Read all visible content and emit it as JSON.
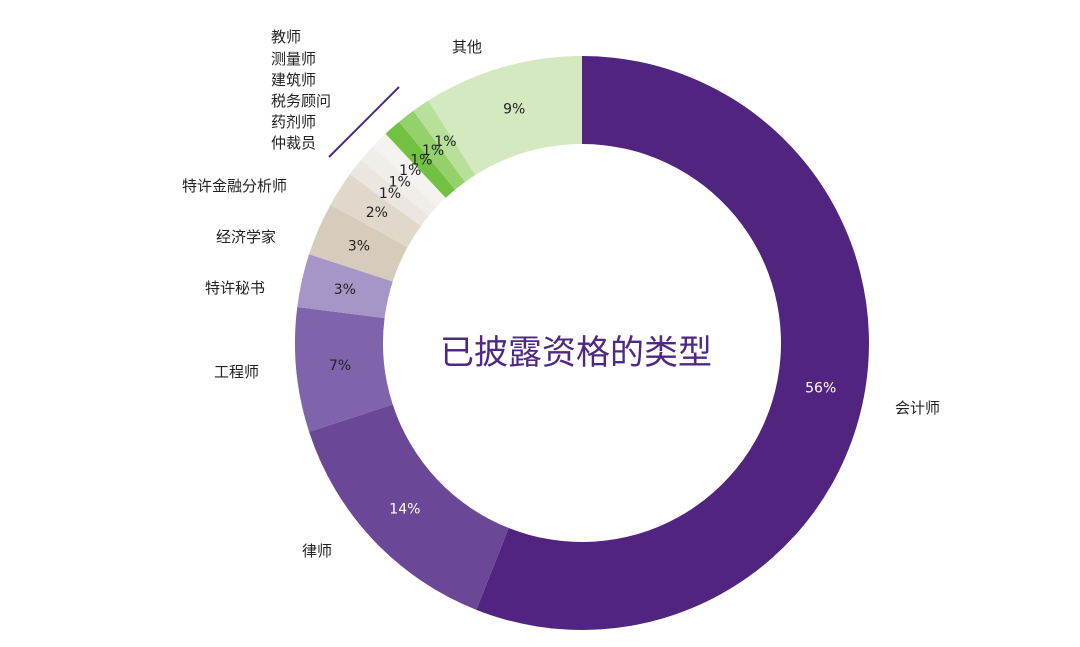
{
  "chart_data": {
    "type": "pie",
    "title": "已披露资格的类型",
    "slices": [
      {
        "label": "会计师",
        "value": 56,
        "value_label": "56%",
        "color": "#51247f",
        "text_color": "#ffffff"
      },
      {
        "label": "律师",
        "value": 14,
        "value_label": "14%",
        "color": "#6a4797",
        "text_color": "#ffffff"
      },
      {
        "label": "工程师",
        "value": 7,
        "value_label": "7%",
        "color": "#7f63ab",
        "text_color": "#222222"
      },
      {
        "label": "特许秘书",
        "value": 3,
        "value_label": "3%",
        "color": "#a696c8",
        "text_color": "#222222"
      },
      {
        "label": "经济学家",
        "value": 3,
        "value_label": "3%",
        "color": "#d7cbbb",
        "text_color": "#222222"
      },
      {
        "label": "特许金融分析师",
        "value": 2,
        "value_label": "2%",
        "color": "#e1d8cc",
        "text_color": "#222222"
      },
      {
        "label": "仲裁员",
        "value": 1,
        "value_label": "1%",
        "color": "#ebe6df",
        "text_color": "#222222"
      },
      {
        "label": "药剂师",
        "value": 1,
        "value_label": "1%",
        "color": "#f1eee9",
        "text_color": "#222222"
      },
      {
        "label": "税务顾问",
        "value": 1,
        "value_label": "1%",
        "color": "#f5f3ef",
        "text_color": "#222222"
      },
      {
        "label": "建筑师",
        "value": 1,
        "value_label": "1%",
        "color": "#72c143",
        "text_color": "#222222"
      },
      {
        "label": "测量师",
        "value": 1,
        "value_label": "1%",
        "color": "#95d16a",
        "text_color": "#222222"
      },
      {
        "label": "教师",
        "value": 1,
        "value_label": "1%",
        "color": "#b8e09b",
        "text_color": "#222222"
      },
      {
        "label": "其他",
        "value": 9,
        "value_label": "9%",
        "color": "#d4e9bf",
        "text_color": "#222222"
      }
    ],
    "grouped_label_lines": [
      "教师",
      "测量师",
      "建筑师",
      "税务顾问",
      "药剂师",
      "仲裁员"
    ]
  }
}
